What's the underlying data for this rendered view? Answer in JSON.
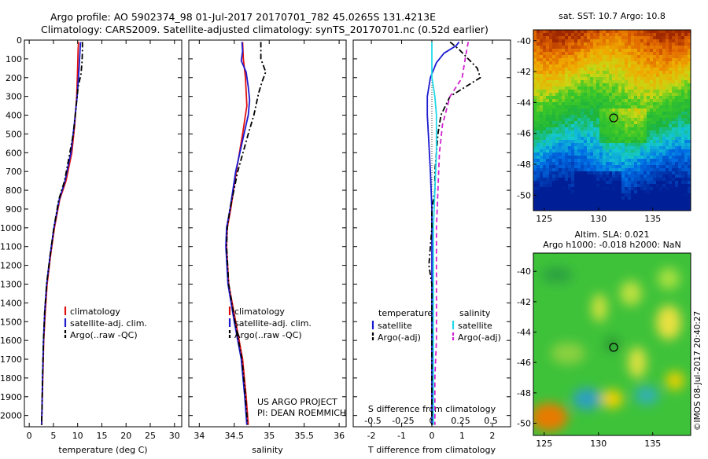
{
  "header": {
    "line1": "Argo profile: AO 5902374_98 01-Jul-2017 20170701_782 45.0265S 131.4213E",
    "line2": "Climatology: CARS2009. Satellite-adjusted climatology: synTS_20170701.nc (0.52d earlier)"
  },
  "credit": "©IMOS 08-Jul-2017 20:40:27",
  "project_note": [
    "US ARGO PROJECT",
    "PI: DEAN ROEMMICH"
  ],
  "colors": {
    "climatology": "#e01010",
    "satellite": "#1a1ad0",
    "argo": "#000000",
    "sal_satellite": "#22d8e8",
    "sal_argo": "#d022d0"
  },
  "chart_data": [
    {
      "type": "line",
      "xlabel": "temperature (deg C)",
      "xlim": [
        -1,
        31.5
      ],
      "xticks": [
        0,
        5,
        10,
        15,
        20,
        25,
        30
      ],
      "ylim": [
        2060,
        0
      ],
      "yticks": [
        0,
        100,
        200,
        300,
        400,
        500,
        600,
        700,
        800,
        900,
        1000,
        1100,
        1200,
        1300,
        1400,
        1500,
        1600,
        1700,
        1800,
        1900,
        2000
      ],
      "legend": [
        "climatology",
        "satellite-adj. clim.",
        "Argo(..raw -QC)"
      ],
      "series": [
        {
          "name": "climatology",
          "color_key": "climatology",
          "style": "solid",
          "points": [
            [
              10.2,
              10
            ],
            [
              10.1,
              50
            ],
            [
              10.0,
              150
            ],
            [
              9.8,
              300
            ],
            [
              9.4,
              450
            ],
            [
              8.8,
              600
            ],
            [
              7.6,
              750
            ],
            [
              6.3,
              850
            ],
            [
              5.2,
              1000
            ],
            [
              4.4,
              1150
            ],
            [
              3.7,
              1300
            ],
            [
              3.3,
              1450
            ],
            [
              3.0,
              1600
            ],
            [
              2.8,
              1800
            ],
            [
              2.6,
              2000
            ],
            [
              2.6,
              2050
            ]
          ]
        },
        {
          "name": "satellite-adj. clim.",
          "color_key": "satellite",
          "style": "solid",
          "points": [
            [
              10.6,
              10
            ],
            [
              10.5,
              50
            ],
            [
              10.3,
              150
            ],
            [
              9.9,
              300
            ],
            [
              9.3,
              450
            ],
            [
              8.6,
              600
            ],
            [
              7.4,
              750
            ],
            [
              6.2,
              850
            ],
            [
              5.1,
              1000
            ],
            [
              4.3,
              1150
            ],
            [
              3.6,
              1300
            ],
            [
              3.2,
              1450
            ],
            [
              2.95,
              1600
            ],
            [
              2.75,
              1800
            ],
            [
              2.6,
              2000
            ],
            [
              2.55,
              2050
            ]
          ]
        },
        {
          "name": "Argo(..raw -QC)",
          "color_key": "argo",
          "style": "dashdot",
          "points": [
            [
              11.0,
              10
            ],
            [
              11.0,
              60
            ],
            [
              10.9,
              120
            ],
            [
              10.7,
              180
            ],
            [
              10.1,
              250
            ],
            [
              9.7,
              350
            ],
            [
              9.1,
              500
            ],
            [
              8.4,
              600
            ],
            [
              7.3,
              750
            ],
            [
              6.1,
              850
            ],
            [
              5.1,
              1000
            ],
            [
              4.3,
              1150
            ],
            [
              3.6,
              1300
            ],
            [
              3.2,
              1450
            ],
            [
              2.95,
              1600
            ],
            [
              2.75,
              1800
            ],
            [
              2.6,
              2000
            ],
            [
              2.55,
              2050
            ]
          ]
        }
      ]
    },
    {
      "type": "line",
      "xlabel": "salinity",
      "xlim": [
        33.85,
        36.1
      ],
      "xticks": [
        34,
        34.5,
        35,
        35.5,
        36
      ],
      "ylim": [
        2060,
        0
      ],
      "legend": [
        "climatology",
        "satellite-adj. clim.",
        "Argo(..raw -QC)"
      ],
      "series": [
        {
          "name": "climatology",
          "color_key": "climatology",
          "style": "solid",
          "points": [
            [
              34.62,
              10
            ],
            [
              34.63,
              100
            ],
            [
              34.66,
              200
            ],
            [
              34.68,
              350
            ],
            [
              34.62,
              500
            ],
            [
              34.53,
              700
            ],
            [
              34.45,
              900
            ],
            [
              34.4,
              1000
            ],
            [
              34.39,
              1100
            ],
            [
              34.42,
              1300
            ],
            [
              34.52,
              1500
            ],
            [
              34.62,
              1700
            ],
            [
              34.67,
              1900
            ],
            [
              34.7,
              2050
            ]
          ]
        },
        {
          "name": "satellite-adj. clim.",
          "color_key": "satellite",
          "style": "solid",
          "points": [
            [
              34.61,
              10
            ],
            [
              34.62,
              60
            ],
            [
              34.6,
              110
            ],
            [
              34.67,
              170
            ],
            [
              34.7,
              250
            ],
            [
              34.72,
              320
            ],
            [
              34.7,
              400
            ],
            [
              34.64,
              500
            ],
            [
              34.52,
              700
            ],
            [
              34.44,
              900
            ],
            [
              34.39,
              1000
            ],
            [
              34.38,
              1100
            ],
            [
              34.41,
              1300
            ],
            [
              34.5,
              1500
            ],
            [
              34.6,
              1700
            ],
            [
              34.65,
              1900
            ],
            [
              34.68,
              2050
            ]
          ]
        },
        {
          "name": "Argo(..raw -QC)",
          "color_key": "argo",
          "style": "dashdot",
          "points": [
            [
              34.88,
              10
            ],
            [
              34.88,
              60
            ],
            [
              34.88,
              100
            ],
            [
              34.95,
              170
            ],
            [
              34.9,
              220
            ],
            [
              34.85,
              280
            ],
            [
              34.78,
              400
            ],
            [
              34.7,
              500
            ],
            [
              34.55,
              700
            ],
            [
              34.44,
              900
            ],
            [
              34.4,
              1000
            ],
            [
              34.39,
              1100
            ],
            [
              34.42,
              1300
            ],
            [
              34.51,
              1500
            ],
            [
              34.61,
              1700
            ],
            [
              34.66,
              1900
            ],
            [
              34.69,
              2050
            ]
          ]
        }
      ]
    },
    {
      "type": "line",
      "xlabel": "T difference from climatology",
      "xlabel_top": "S difference from climatology",
      "xlim": [
        -2.6,
        2.6
      ],
      "xticks": [
        -2,
        -1,
        0,
        1,
        2
      ],
      "xticks_top": [
        "-0.5",
        "-0.25",
        "0",
        "0.25",
        "0.5"
      ],
      "ylim": [
        2060,
        0
      ],
      "legend_left_title": "temperature",
      "legend_right_title": "salinity",
      "legend": [
        "satellite",
        "Argo(-adj)",
        "satellite",
        "Argo(-adj)"
      ],
      "series": [
        {
          "name": "satellite",
          "group": "temperature",
          "color_key": "satellite",
          "style": "solid",
          "points": [
            [
              0.9,
              10
            ],
            [
              0.8,
              30
            ],
            [
              0.4,
              70
            ],
            [
              0.15,
              120
            ],
            [
              -0.05,
              200
            ],
            [
              -0.15,
              300
            ],
            [
              -0.15,
              400
            ],
            [
              -0.1,
              550
            ],
            [
              -0.05,
              700
            ],
            [
              0.0,
              900
            ],
            [
              0.0,
              1100
            ],
            [
              0.0,
              1400
            ],
            [
              0.0,
              1700
            ],
            [
              0.0,
              2050
            ]
          ]
        },
        {
          "name": "Argo(-adj)",
          "group": "temperature",
          "color_key": "argo",
          "style": "dashdot",
          "points": [
            [
              0.6,
              10
            ],
            [
              0.9,
              50
            ],
            [
              1.5,
              150
            ],
            [
              1.6,
              200
            ],
            [
              0.6,
              300
            ],
            [
              0.3,
              400
            ],
            [
              0.2,
              500
            ],
            [
              0.15,
              600
            ],
            [
              0.1,
              700
            ],
            [
              0.1,
              800
            ],
            [
              0.0,
              900
            ],
            [
              0.0,
              1000
            ],
            [
              -0.05,
              1100
            ],
            [
              -0.1,
              1200
            ],
            [
              0.0,
              1300
            ],
            [
              0.0,
              1500
            ],
            [
              0.0,
              1700
            ],
            [
              0.0,
              2050
            ]
          ]
        },
        {
          "name": "satellite",
          "group": "salinity",
          "color_key": "sal_satellite",
          "style": "solid",
          "points": [
            [
              0.0,
              10
            ],
            [
              0.0,
              80
            ],
            [
              0.0,
              200
            ],
            [
              0.1,
              300
            ],
            [
              0.15,
              400
            ],
            [
              0.15,
              600
            ],
            [
              0.1,
              800
            ],
            [
              0.05,
              1000
            ],
            [
              0.05,
              1200
            ],
            [
              0.05,
              1500
            ],
            [
              0.05,
              1800
            ],
            [
              0.05,
              2050
            ]
          ]
        },
        {
          "name": "Argo(-adj)",
          "group": "salinity",
          "color_key": "sal_argo",
          "style": "dashed",
          "points": [
            [
              1.2,
              10
            ],
            [
              1.1,
              100
            ],
            [
              1.0,
              200
            ],
            [
              0.6,
              300
            ],
            [
              0.35,
              450
            ],
            [
              0.25,
              600
            ],
            [
              0.2,
              800
            ],
            [
              0.15,
              1000
            ],
            [
              0.15,
              1200
            ],
            [
              0.15,
              1400
            ],
            [
              0.15,
              1600
            ],
            [
              0.1,
              1800
            ],
            [
              0.1,
              2050
            ]
          ]
        }
      ]
    },
    {
      "type": "heatmap",
      "title": "sat. SST: 10.7  Argo: 10.8",
      "xlim": [
        124,
        138.5
      ],
      "ylim": [
        -51,
        -39.3
      ],
      "xticks": [
        125,
        130,
        135
      ],
      "yticks": [
        -40,
        -42,
        -44,
        -46,
        -48,
        -50
      ],
      "marker": [
        131.4,
        -45.0
      ]
    },
    {
      "type": "heatmap",
      "title": "Altim. SLA: 0.021",
      "subtitle": "Argo h1000: -0.018  h2000: NaN",
      "xlim": [
        124,
        138.5
      ],
      "ylim": [
        -50.8,
        -38.8
      ],
      "xticks": [
        125,
        130,
        135
      ],
      "yticks": [
        -40,
        -42,
        -44,
        -46,
        -48,
        -50
      ],
      "marker": [
        131.4,
        -45.0
      ]
    }
  ]
}
